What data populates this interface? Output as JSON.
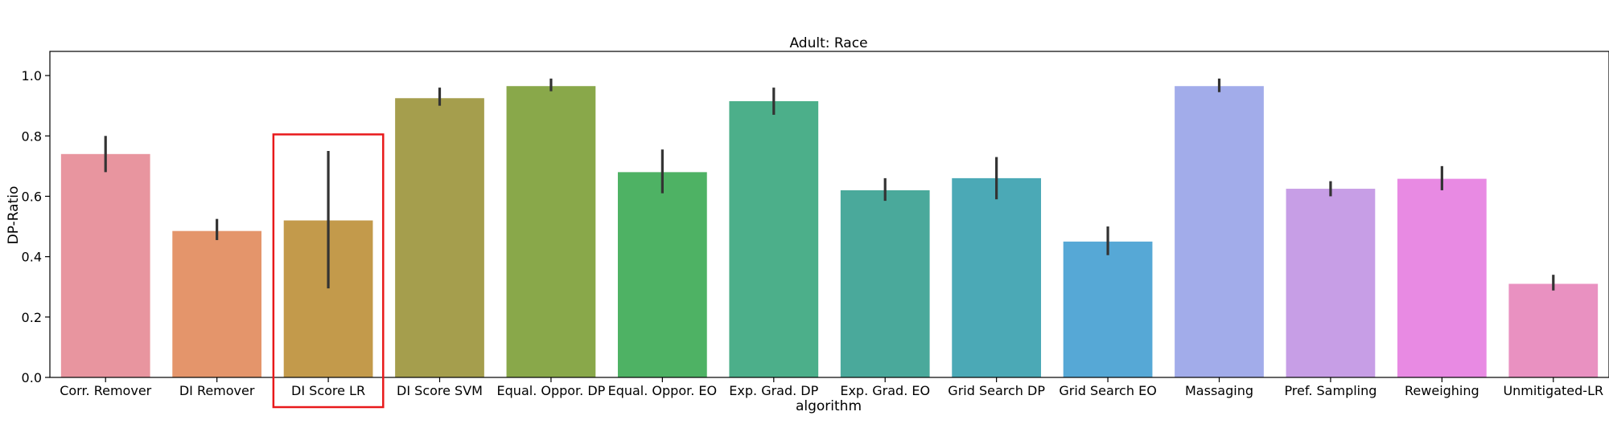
{
  "chart_data": {
    "type": "bar",
    "title": "Adult: Race",
    "xlabel": "algorithm",
    "ylabel": "DP-Ratio",
    "ylim": [
      0,
      1.08
    ],
    "yticks": [
      0.0,
      0.2,
      0.4,
      0.6,
      0.8,
      1.0
    ],
    "ytick_labels": [
      "0.0",
      "0.2",
      "0.4",
      "0.6",
      "0.8",
      "1.0"
    ],
    "grid": false,
    "categories": [
      "Corr. Remover",
      "DI Remover",
      "DI Score LR",
      "DI Score SVM",
      "Equal. Oppor. DP",
      "Equal. Oppor. EO",
      "Exp. Grad. DP",
      "Exp. Grad. EO",
      "Grid Search DP",
      "Grid Search EO",
      "Massaging",
      "Pref. Sampling",
      "Reweighing",
      "Unmitigated-LR"
    ],
    "values": [
      0.74,
      0.485,
      0.52,
      0.925,
      0.965,
      0.68,
      0.915,
      0.62,
      0.66,
      0.45,
      0.965,
      0.625,
      0.658,
      0.31
    ],
    "error_low": [
      0.68,
      0.455,
      0.295,
      0.9,
      0.948,
      0.61,
      0.87,
      0.585,
      0.59,
      0.405,
      0.945,
      0.6,
      0.62,
      0.288
    ],
    "error_high": [
      0.8,
      0.525,
      0.75,
      0.96,
      0.99,
      0.755,
      0.96,
      0.66,
      0.73,
      0.5,
      0.99,
      0.65,
      0.7,
      0.34
    ],
    "colors": [
      "#e8959f",
      "#e4956b",
      "#c39a4b",
      "#a59e4d",
      "#89a84a",
      "#4eb264",
      "#4caf8a",
      "#4aa99b",
      "#4ba9b6",
      "#56a8d6",
      "#a2acea",
      "#c79ee6",
      "#e88ae3",
      "#e991c1"
    ],
    "error_color": "#333333",
    "highlight": {
      "category": "DI Score LR",
      "color": "#e8191b"
    }
  }
}
